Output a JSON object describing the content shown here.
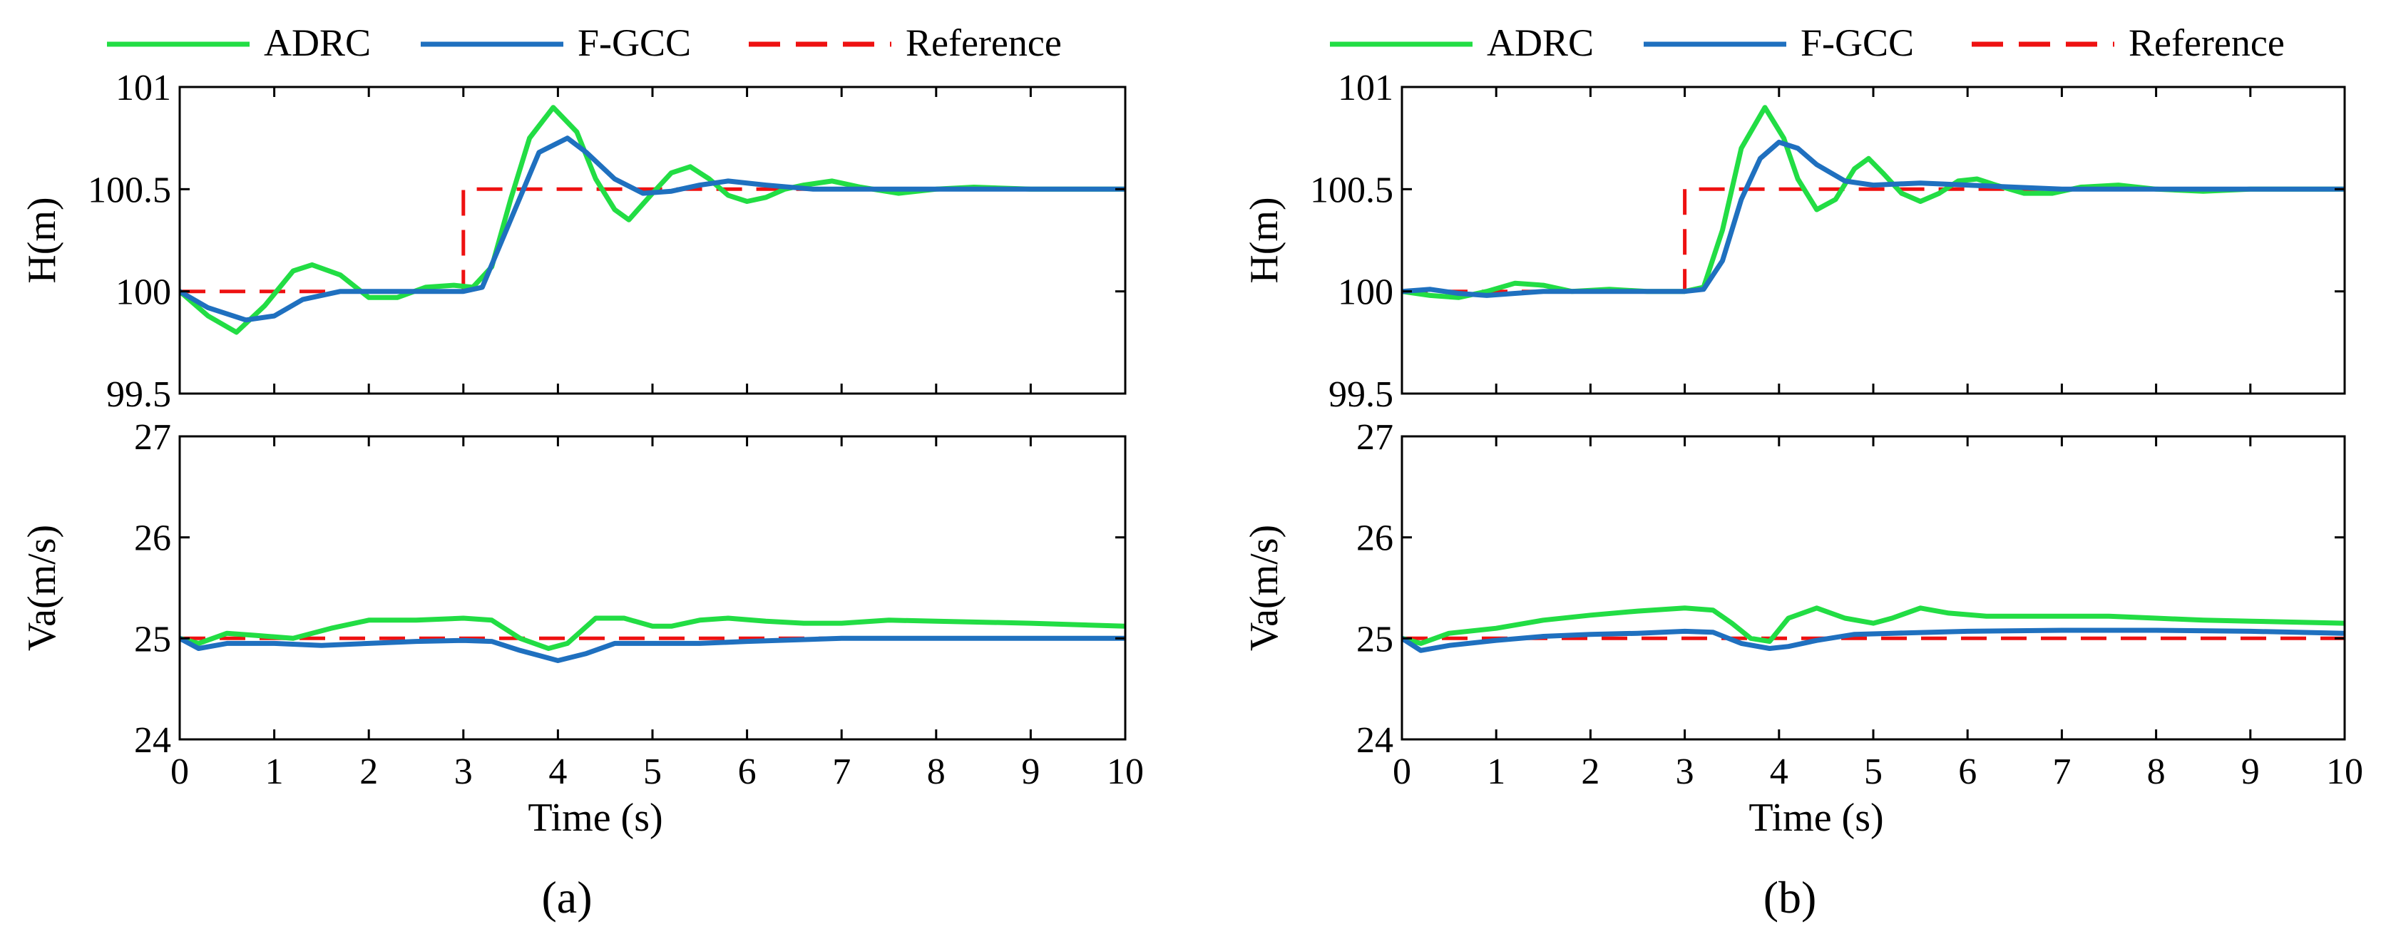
{
  "legend": {
    "entries": [
      {
        "label": "ADRC",
        "color": "#22DD44",
        "style": "solid"
      },
      {
        "label": "F-GCC",
        "color": "#1F70BF",
        "style": "solid"
      },
      {
        "label": "Reference",
        "color": "#EE1111",
        "style": "dashed"
      }
    ]
  },
  "chart_data": [
    {
      "type": "line",
      "panel": "(a)",
      "xlabel": "Time (s)",
      "xlim": [
        0,
        10
      ],
      "xticks": [
        "0",
        "1",
        "2",
        "3",
        "4",
        "5",
        "6",
        "7",
        "8",
        "9",
        "10"
      ],
      "subplots": [
        {
          "name": "altitude",
          "ylabel": "H(m)",
          "ylim": [
            99.5,
            101
          ],
          "yticks": [
            "99.5",
            "100",
            "100.5",
            "101"
          ],
          "series": [
            {
              "name": "ADRC",
              "x": [
                0,
                0.3,
                0.6,
                0.9,
                1.2,
                1.4,
                1.7,
                2.0,
                2.3,
                2.6,
                2.9,
                3.1,
                3.3,
                3.5,
                3.7,
                3.95,
                4.2,
                4.4,
                4.6,
                4.75,
                5.0,
                5.2,
                5.4,
                5.6,
                5.8,
                6.0,
                6.2,
                6.4,
                6.6,
                6.9,
                7.2,
                7.6,
                8.0,
                8.4,
                9.0,
                10
              ],
              "y": [
                100,
                99.88,
                99.8,
                99.93,
                100.1,
                100.13,
                100.08,
                99.97,
                99.97,
                100.02,
                100.03,
                100.02,
                100.12,
                100.45,
                100.75,
                100.9,
                100.78,
                100.55,
                100.4,
                100.35,
                100.48,
                100.58,
                100.61,
                100.55,
                100.47,
                100.44,
                100.46,
                100.5,
                100.52,
                100.54,
                100.51,
                100.48,
                100.5,
                100.51,
                100.5,
                100.5
              ]
            },
            {
              "name": "F-GCC",
              "x": [
                0,
                0.3,
                0.7,
                1.0,
                1.3,
                1.7,
                2.0,
                2.5,
                3.0,
                3.2,
                3.5,
                3.8,
                4.1,
                4.3,
                4.6,
                4.9,
                5.2,
                5.5,
                5.8,
                6.2,
                6.7,
                7.2,
                8.0,
                9.0,
                10
              ],
              "y": [
                100,
                99.92,
                99.86,
                99.88,
                99.96,
                100.0,
                100.0,
                100.0,
                100.0,
                100.02,
                100.35,
                100.68,
                100.75,
                100.68,
                100.55,
                100.48,
                100.49,
                100.52,
                100.54,
                100.52,
                100.5,
                100.5,
                100.5,
                100.5,
                100.5
              ]
            },
            {
              "name": "Reference",
              "x": [
                0,
                3,
                3,
                10
              ],
              "y": [
                100,
                100,
                100.5,
                100.5
              ]
            }
          ]
        },
        {
          "name": "airspeed",
          "ylabel": "Va(m/s)",
          "ylim": [
            24,
            27
          ],
          "yticks": [
            "24",
            "25",
            "26",
            "27"
          ],
          "series": [
            {
              "name": "ADRC",
              "x": [
                0,
                0.2,
                0.5,
                0.8,
                1.2,
                1.6,
                2.0,
                2.5,
                3.0,
                3.3,
                3.6,
                3.9,
                4.1,
                4.4,
                4.7,
                5.0,
                5.2,
                5.5,
                5.8,
                6.2,
                6.6,
                7.0,
                7.5,
                8.0,
                9.0,
                10
              ],
              "y": [
                25,
                24.95,
                25.05,
                25.03,
                25.0,
                25.1,
                25.18,
                25.18,
                25.2,
                25.18,
                25.0,
                24.9,
                24.95,
                25.2,
                25.2,
                25.12,
                25.12,
                25.18,
                25.2,
                25.17,
                25.15,
                25.15,
                25.18,
                25.17,
                25.15,
                25.12
              ]
            },
            {
              "name": "F-GCC",
              "x": [
                0,
                0.2,
                0.5,
                1.0,
                1.5,
                2.0,
                2.5,
                3.0,
                3.3,
                3.6,
                4.0,
                4.3,
                4.6,
                5.0,
                5.5,
                6.0,
                7.0,
                8.0,
                9.0,
                10
              ],
              "y": [
                25,
                24.9,
                24.95,
                24.95,
                24.93,
                24.95,
                24.97,
                24.98,
                24.97,
                24.88,
                24.78,
                24.85,
                24.95,
                24.95,
                24.95,
                24.97,
                25.0,
                25.0,
                25.0,
                25.0
              ]
            },
            {
              "name": "Reference",
              "x": [
                0,
                10
              ],
              "y": [
                25,
                25
              ]
            }
          ]
        }
      ]
    },
    {
      "type": "line",
      "panel": "(b)",
      "xlabel": "Time (s)",
      "xlim": [
        0,
        10
      ],
      "xticks": [
        "0",
        "1",
        "2",
        "3",
        "4",
        "5",
        "6",
        "7",
        "8",
        "9",
        "10"
      ],
      "subplots": [
        {
          "name": "altitude",
          "ylabel": "H(m)",
          "ylim": [
            99.5,
            101
          ],
          "yticks": [
            "99.5",
            "100",
            "100.5",
            "101"
          ],
          "series": [
            {
              "name": "ADRC",
              "x": [
                0,
                0.3,
                0.6,
                0.9,
                1.2,
                1.5,
                1.8,
                2.2,
                2.6,
                3.0,
                3.2,
                3.4,
                3.6,
                3.85,
                4.05,
                4.2,
                4.4,
                4.6,
                4.8,
                4.95,
                5.1,
                5.3,
                5.5,
                5.7,
                5.9,
                6.1,
                6.3,
                6.6,
                6.9,
                7.2,
                7.6,
                8.0,
                8.5,
                9.0,
                10
              ],
              "y": [
                100,
                99.98,
                99.97,
                100.0,
                100.04,
                100.03,
                100.0,
                100.01,
                100.0,
                100.0,
                100.02,
                100.3,
                100.7,
                100.9,
                100.75,
                100.55,
                100.4,
                100.45,
                100.6,
                100.65,
                100.58,
                100.48,
                100.44,
                100.48,
                100.54,
                100.55,
                100.52,
                100.48,
                100.48,
                100.51,
                100.52,
                100.5,
                100.49,
                100.5,
                100.5
              ]
            },
            {
              "name": "F-GCC",
              "x": [
                0,
                0.3,
                0.6,
                0.9,
                1.2,
                1.5,
                2.0,
                2.5,
                3.0,
                3.2,
                3.4,
                3.6,
                3.8,
                4.0,
                4.2,
                4.4,
                4.7,
                5.0,
                5.5,
                6.0,
                6.5,
                7.0,
                8.0,
                9.0,
                10
              ],
              "y": [
                100,
                100.01,
                99.99,
                99.98,
                99.99,
                100.0,
                100.0,
                100.0,
                100.0,
                100.01,
                100.15,
                100.45,
                100.65,
                100.73,
                100.7,
                100.62,
                100.54,
                100.52,
                100.53,
                100.52,
                100.51,
                100.5,
                100.5,
                100.5,
                100.5
              ]
            },
            {
              "name": "Reference",
              "x": [
                0,
                3,
                3,
                10
              ],
              "y": [
                100,
                100,
                100.5,
                100.5
              ]
            }
          ]
        },
        {
          "name": "airspeed",
          "ylabel": "Va(m/s)",
          "ylim": [
            24,
            27
          ],
          "yticks": [
            "24",
            "25",
            "26",
            "27"
          ],
          "series": [
            {
              "name": "ADRC",
              "x": [
                0,
                0.2,
                0.5,
                1.0,
                1.5,
                2.0,
                2.5,
                3.0,
                3.3,
                3.5,
                3.7,
                3.9,
                4.1,
                4.4,
                4.7,
                5.0,
                5.2,
                5.5,
                5.8,
                6.2,
                6.6,
                7.0,
                7.5,
                8.0,
                8.5,
                9.0,
                10
              ],
              "y": [
                25,
                24.95,
                25.05,
                25.1,
                25.18,
                25.23,
                25.27,
                25.3,
                25.28,
                25.15,
                25.0,
                24.97,
                25.2,
                25.3,
                25.2,
                25.15,
                25.2,
                25.3,
                25.25,
                25.22,
                25.22,
                25.22,
                25.22,
                25.2,
                25.18,
                25.17,
                25.15
              ]
            },
            {
              "name": "F-GCC",
              "x": [
                0,
                0.2,
                0.5,
                1.0,
                1.5,
                2.0,
                2.5,
                3.0,
                3.3,
                3.6,
                3.9,
                4.1,
                4.4,
                4.8,
                5.2,
                6.0,
                7.0,
                8.0,
                9.0,
                10
              ],
              "y": [
                25,
                24.88,
                24.93,
                24.98,
                25.02,
                25.04,
                25.05,
                25.07,
                25.06,
                24.95,
                24.9,
                24.92,
                24.98,
                25.04,
                25.05,
                25.07,
                25.08,
                25.08,
                25.07,
                25.05
              ]
            },
            {
              "name": "Reference",
              "x": [
                0,
                10
              ],
              "y": [
                25,
                25
              ]
            }
          ]
        }
      ]
    }
  ]
}
